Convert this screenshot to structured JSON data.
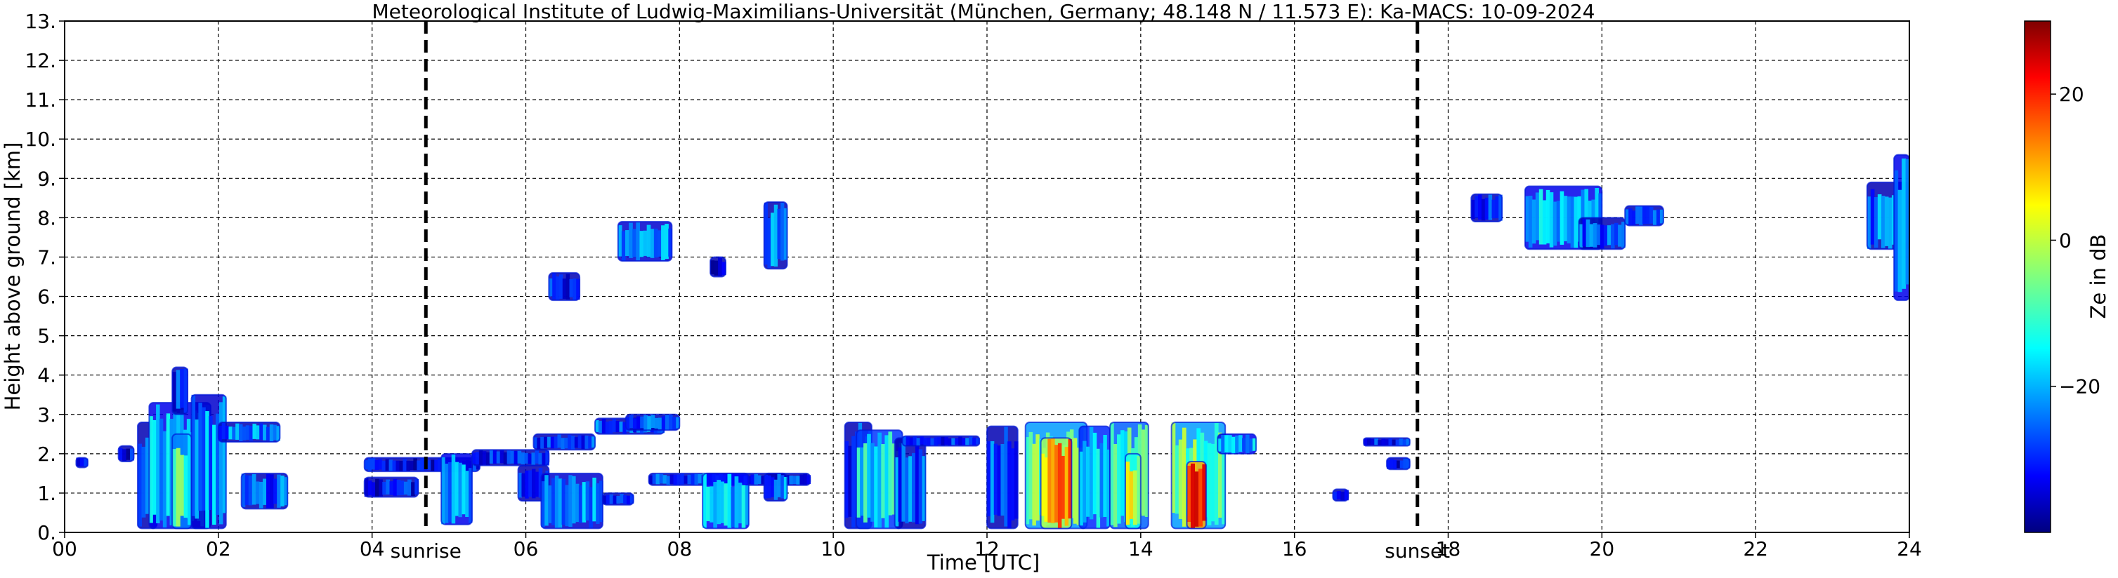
{
  "chart_data": {
    "type": "heatmap",
    "title": "Meteorological Institute of Ludwig-Maximilians-Universität (München, Germany; 48.148 N / 11.573 E):    Ka-MACS: 10-09-2024",
    "xlabel": "Time [UTC]",
    "ylabel": "Height above ground [km]",
    "xlim": [
      0,
      24
    ],
    "ylim": [
      0,
      13
    ],
    "x_ticks": [
      "00",
      "02",
      "04",
      "06",
      "08",
      "10",
      "12",
      "14",
      "16",
      "18",
      "20",
      "22",
      "24"
    ],
    "y_ticks": [
      "0.",
      "1.",
      "2.",
      "3.",
      "4.",
      "5.",
      "6.",
      "7.",
      "8.",
      "9.",
      "10.",
      "11.",
      "12.",
      "13."
    ],
    "grid": true,
    "colorbar": {
      "label": "Ze in dB",
      "range": [
        -40,
        30
      ],
      "colormap": "jet",
      "ticks": [
        {
          "value": 20,
          "label": "20"
        },
        {
          "value": 0,
          "label": "0"
        },
        {
          "value": -20,
          "label": "−20"
        }
      ]
    },
    "annotations": [
      {
        "x": 4.7,
        "label": "sunrise",
        "line": "dashed"
      },
      {
        "x": 17.6,
        "label": "sunset",
        "line": "dashed"
      }
    ],
    "echoes": [
      {
        "t0": 0.15,
        "t1": 0.3,
        "h0": 1.65,
        "h1": 1.9,
        "ze": -32
      },
      {
        "t0": 0.7,
        "t1": 0.9,
        "h0": 1.8,
        "h1": 2.2,
        "ze": -33
      },
      {
        "t0": 0.95,
        "t1": 1.2,
        "h0": 0.1,
        "h1": 2.8,
        "ze": -28
      },
      {
        "t0": 1.1,
        "t1": 1.9,
        "h0": 0.1,
        "h1": 3.3,
        "ze": -20
      },
      {
        "t0": 1.4,
        "t1": 1.65,
        "h0": 0.1,
        "h1": 2.5,
        "ze": -10
      },
      {
        "t0": 1.65,
        "t1": 2.1,
        "h0": 0.1,
        "h1": 3.5,
        "ze": -22
      },
      {
        "t0": 2.0,
        "t1": 2.8,
        "h0": 2.3,
        "h1": 2.8,
        "ze": -24
      },
      {
        "t0": 2.3,
        "t1": 2.9,
        "h0": 0.6,
        "h1": 1.5,
        "ze": -26
      },
      {
        "t0": 1.4,
        "t1": 1.6,
        "h0": 3.0,
        "h1": 4.2,
        "ze": -30
      },
      {
        "t0": 3.9,
        "t1": 4.6,
        "h0": 0.9,
        "h1": 1.4,
        "ze": -32
      },
      {
        "t0": 3.9,
        "t1": 5.4,
        "h0": 1.55,
        "h1": 1.9,
        "ze": -32
      },
      {
        "t0": 4.9,
        "t1": 5.3,
        "h0": 0.2,
        "h1": 2.0,
        "ze": -20
      },
      {
        "t0": 5.3,
        "t1": 6.3,
        "h0": 1.7,
        "h1": 2.1,
        "ze": -30
      },
      {
        "t0": 5.9,
        "t1": 6.3,
        "h0": 0.8,
        "h1": 1.7,
        "ze": -30
      },
      {
        "t0": 6.2,
        "t1": 7.0,
        "h0": 0.1,
        "h1": 1.5,
        "ze": -22
      },
      {
        "t0": 6.1,
        "t1": 6.9,
        "h0": 2.1,
        "h1": 2.5,
        "ze": -28
      },
      {
        "t0": 6.9,
        "t1": 7.8,
        "h0": 2.5,
        "h1": 2.9,
        "ze": -26
      },
      {
        "t0": 7.3,
        "t1": 8.0,
        "h0": 2.6,
        "h1": 3.0,
        "ze": -25
      },
      {
        "t0": 7.0,
        "t1": 7.4,
        "h0": 0.7,
        "h1": 1.0,
        "ze": -32
      },
      {
        "t0": 7.6,
        "t1": 9.7,
        "h0": 1.2,
        "h1": 1.5,
        "ze": -28
      },
      {
        "t0": 8.3,
        "t1": 8.9,
        "h0": 0.1,
        "h1": 1.5,
        "ze": -18
      },
      {
        "t0": 9.1,
        "t1": 9.4,
        "h0": 0.8,
        "h1": 1.5,
        "ze": -24
      },
      {
        "t0": 6.3,
        "t1": 6.7,
        "h0": 5.9,
        "h1": 6.6,
        "ze": -30
      },
      {
        "t0": 7.2,
        "t1": 7.9,
        "h0": 6.9,
        "h1": 7.9,
        "ze": -22
      },
      {
        "t0": 8.4,
        "t1": 8.6,
        "h0": 6.5,
        "h1": 7.0,
        "ze": -34
      },
      {
        "t0": 9.1,
        "t1": 9.4,
        "h0": 6.7,
        "h1": 8.4,
        "ze": -24
      },
      {
        "t0": 10.15,
        "t1": 10.5,
        "h0": 0.1,
        "h1": 2.8,
        "ze": -28
      },
      {
        "t0": 10.3,
        "t1": 10.9,
        "h0": 0.1,
        "h1": 2.6,
        "ze": -15
      },
      {
        "t0": 10.8,
        "t1": 11.2,
        "h0": 0.1,
        "h1": 2.4,
        "ze": -26
      },
      {
        "t0": 10.9,
        "t1": 11.9,
        "h0": 2.2,
        "h1": 2.45,
        "ze": -30
      },
      {
        "t0": 12.0,
        "t1": 12.4,
        "h0": 0.1,
        "h1": 2.7,
        "ze": -26
      },
      {
        "t0": 12.5,
        "t1": 13.3,
        "h0": 0.1,
        "h1": 2.8,
        "ze": -8
      },
      {
        "t0": 12.7,
        "t1": 13.1,
        "h0": 0.1,
        "h1": 2.4,
        "ze": 10
      },
      {
        "t0": 13.2,
        "t1": 13.6,
        "h0": 0.1,
        "h1": 2.7,
        "ze": -16
      },
      {
        "t0": 13.6,
        "t1": 14.1,
        "h0": 0.1,
        "h1": 2.8,
        "ze": -12
      },
      {
        "t0": 13.8,
        "t1": 14.0,
        "h0": 0.1,
        "h1": 2.0,
        "ze": 0
      },
      {
        "t0": 14.4,
        "t1": 15.1,
        "h0": 0.1,
        "h1": 2.8,
        "ze": -8
      },
      {
        "t0": 14.6,
        "t1": 14.85,
        "h0": 0.1,
        "h1": 1.8,
        "ze": 22
      },
      {
        "t0": 15.0,
        "t1": 15.5,
        "h0": 2.0,
        "h1": 2.5,
        "ze": -20
      },
      {
        "t0": 16.5,
        "t1": 16.7,
        "h0": 0.8,
        "h1": 1.1,
        "ze": -32
      },
      {
        "t0": 16.9,
        "t1": 17.5,
        "h0": 2.2,
        "h1": 2.4,
        "ze": -30
      },
      {
        "t0": 17.2,
        "t1": 17.5,
        "h0": 1.6,
        "h1": 1.9,
        "ze": -34
      },
      {
        "t0": 18.3,
        "t1": 18.7,
        "h0": 7.9,
        "h1": 8.6,
        "ze": -28
      },
      {
        "t0": 19.0,
        "t1": 20.0,
        "h0": 7.2,
        "h1": 8.8,
        "ze": -20
      },
      {
        "t0": 19.7,
        "t1": 20.3,
        "h0": 7.2,
        "h1": 8.0,
        "ze": -26
      },
      {
        "t0": 20.3,
        "t1": 20.8,
        "h0": 7.8,
        "h1": 8.3,
        "ze": -30
      },
      {
        "t0": 23.45,
        "t1": 24.0,
        "h0": 7.2,
        "h1": 8.9,
        "ze": -24
      },
      {
        "t0": 23.8,
        "t1": 24.0,
        "h0": 5.9,
        "h1": 9.6,
        "ze": -20
      }
    ]
  }
}
